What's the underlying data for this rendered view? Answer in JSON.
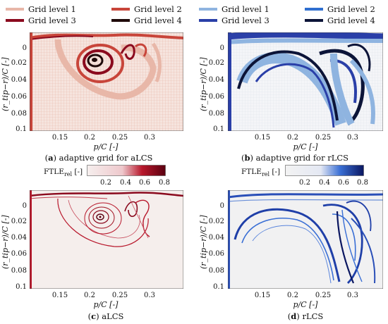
{
  "panels": [
    {
      "id": "a",
      "letter": "a",
      "caption": "adaptive grid for aLCS"
    },
    {
      "id": "b",
      "letter": "b",
      "caption": "adaptive grid for rLCS"
    },
    {
      "id": "c",
      "letter": "c",
      "caption": "aLCS"
    },
    {
      "id": "d",
      "letter": "d",
      "caption": "rLCS"
    }
  ],
  "legend_left": {
    "items": [
      {
        "label": "Grid level 1",
        "color": "#e8b7a8"
      },
      {
        "label": "Grid level 2",
        "color": "#c8453a"
      },
      {
        "label": "Grid level 3",
        "color": "#8b0a1e"
      },
      {
        "label": "Grid level 4",
        "color": "#1f0a0a"
      }
    ]
  },
  "legend_right": {
    "items": [
      {
        "label": "Grid level 1",
        "color": "#8fb4e0"
      },
      {
        "label": "Grid level 2",
        "color": "#2f6fd0"
      },
      {
        "label": "Grid level 3",
        "color": "#2a3fa8"
      },
      {
        "label": "Grid level 4",
        "color": "#0c1438"
      }
    ]
  },
  "axes": {
    "x_label": "p/C [-]",
    "y_label": "(r_tip−r)/C [-]",
    "x_ticks": [
      "0.15",
      "0.2",
      "0.25",
      "0.3"
    ],
    "y_ticks": [
      "0",
      "0.02",
      "0.04",
      "0.06",
      "0.08",
      "0.1"
    ]
  },
  "colorbar_left": {
    "label": "FTLE",
    "sub": "rel",
    "unit": "[-]",
    "ticks": [
      "0.2",
      "0.4",
      "0.6",
      "0.8"
    ],
    "colors": [
      "#f6efee",
      "#b8182c",
      "#5a0010"
    ]
  },
  "colorbar_right": {
    "label": "FTLE",
    "sub": "rel",
    "unit": "[-]",
    "ticks": [
      "0.2",
      "0.4",
      "0.6",
      "0.8"
    ],
    "colors": [
      "#f3f3f3",
      "#3a6fd5",
      "#0a1660"
    ]
  }
}
